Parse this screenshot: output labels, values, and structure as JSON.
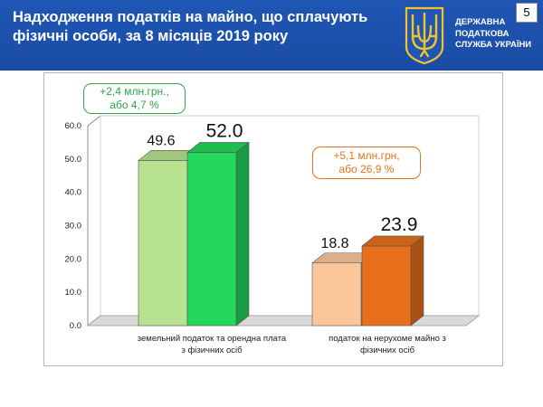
{
  "header": {
    "title": "Надходження податків на майно, що сплачують фізичні особи, за 8 місяців 2019 року",
    "agency_lines": [
      "ДЕРЖАВНА",
      "ПОДАТКОВА",
      "СЛУЖБА УКРАЇНИ"
    ],
    "page_number": "5",
    "emblem_icon": "trident-emblem-icon"
  },
  "colors": {
    "header_bg": "#1f56b4",
    "green_light": "#b7e28f",
    "green_dark": "#22d75a",
    "orange_light": "#fbc79a",
    "orange_dark": "#e8701c",
    "green_callout": "#2ea64a",
    "orange_callout": "#e6721b"
  },
  "callouts": {
    "green": [
      "+2,4 млн.грн.,",
      "або 4,7 %"
    ],
    "orange": [
      "+5,1 млн.грн,",
      "або 26,9 %"
    ]
  },
  "chart_data": {
    "type": "bar",
    "style": "3d-clustered",
    "categories": [
      [
        "земельний податок та орендна плата",
        "з фізичних осіб"
      ],
      [
        "податок на нерухоме майно з",
        "фізичних осіб"
      ]
    ],
    "series": [
      {
        "values": [
          49.6,
          18.8
        ],
        "labels": [
          "49.6",
          "18.8"
        ]
      },
      {
        "values": [
          52.0,
          23.9
        ],
        "labels": [
          "52.0",
          "23.9"
        ]
      }
    ],
    "ylim": [
      0,
      60
    ],
    "yticks": [
      "0.0",
      "10.0",
      "20.0",
      "30.0",
      "40.0",
      "50.0",
      "60.0"
    ],
    "grid": false,
    "legend": "none"
  }
}
